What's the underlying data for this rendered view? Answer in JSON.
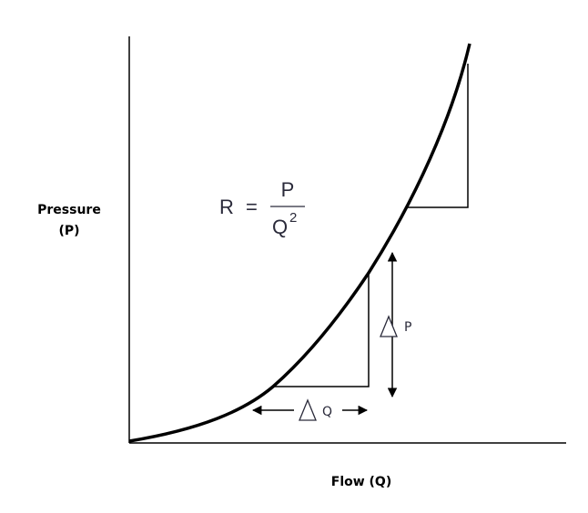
{
  "axes": {
    "y_label": [
      "Pressure",
      "(P)"
    ],
    "x_label": "Flow (Q)"
  },
  "formula": {
    "lhs": "R",
    "equals": "=",
    "numerator": "P",
    "denominator": "Q",
    "exponent": "2"
  },
  "delta_p": {
    "label": "P"
  },
  "delta_q": {
    "label": "Q"
  }
}
